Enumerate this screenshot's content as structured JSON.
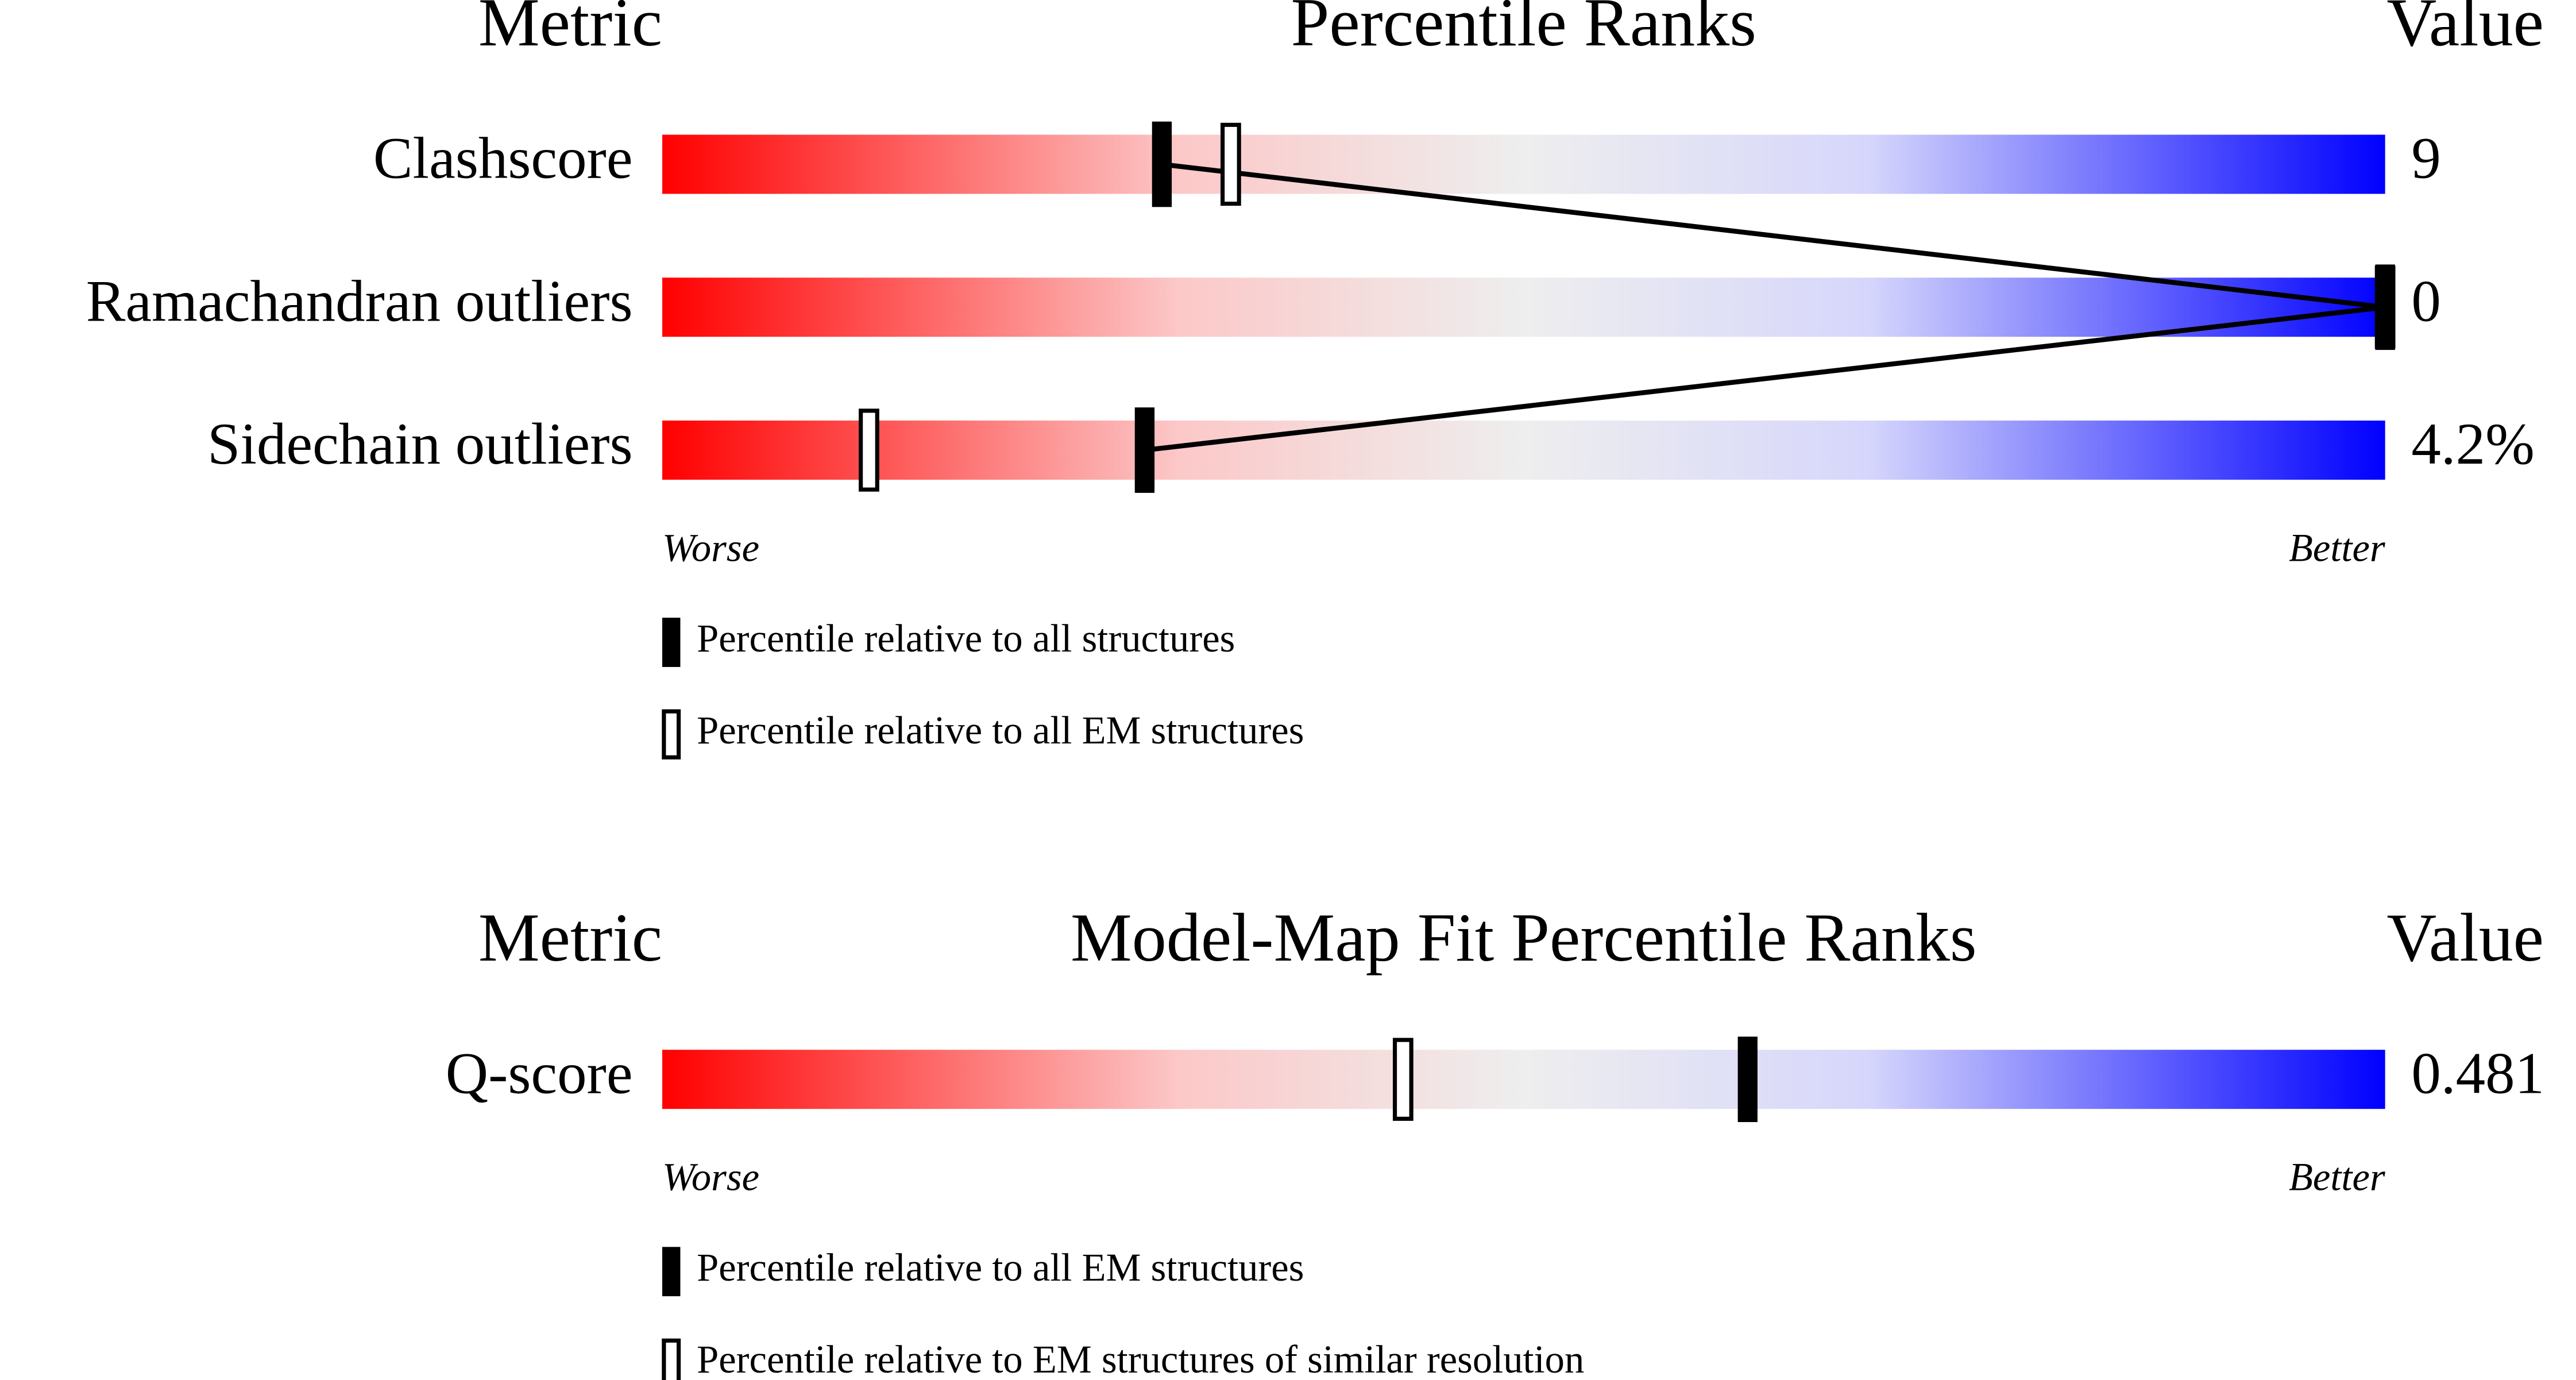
{
  "chart_data": [
    {
      "type": "percentile",
      "header": {
        "metric": "Metric",
        "title": "Percentile Ranks",
        "value": "Value"
      },
      "categories": [
        "Clashscore",
        "Ramachandran outliers",
        "Sidechain outliers"
      ],
      "metric_values": [
        "9",
        "0",
        "4.2%"
      ],
      "series": [
        {
          "name": "Percentile relative to all structures",
          "style": "filled",
          "color": "#000000",
          "values": [
            29,
            100,
            28
          ]
        },
        {
          "name": "Percentile relative to all EM structures",
          "style": "open",
          "color": "#000000",
          "values": [
            33,
            100,
            12
          ]
        }
      ],
      "connect_series": 0,
      "xlim": [
        0,
        100
      ],
      "axis_labels": {
        "low": "Worse",
        "high": "Better"
      }
    },
    {
      "type": "percentile",
      "header": {
        "metric": "Metric",
        "title": "Model-Map Fit Percentile Ranks",
        "value": "Value"
      },
      "categories": [
        "Q-score"
      ],
      "metric_values": [
        "0.481"
      ],
      "series": [
        {
          "name": "Percentile relative to all EM structures",
          "style": "filled",
          "color": "#000000",
          "values": [
            63
          ]
        },
        {
          "name": "Percentile relative to EM structures of similar resolution",
          "style": "open",
          "color": "#000000",
          "values": [
            43
          ]
        }
      ],
      "connect_series": 0,
      "xlim": [
        0,
        100
      ],
      "axis_labels": {
        "low": "Worse",
        "high": "Better"
      }
    }
  ]
}
